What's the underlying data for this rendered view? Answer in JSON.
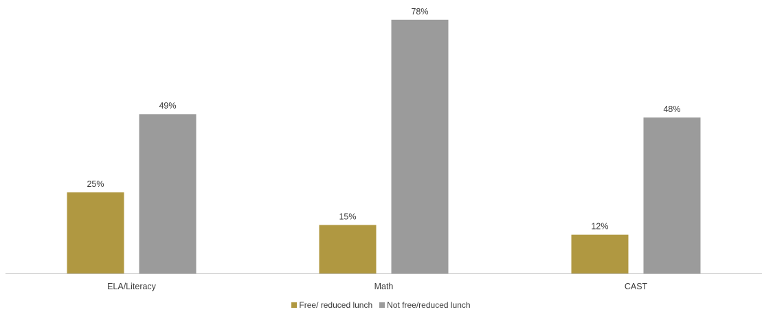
{
  "chart_data": {
    "type": "bar",
    "categories": [
      "ELA/Literacy",
      "Math",
      "CAST"
    ],
    "series": [
      {
        "name": "Free/ reduced lunch",
        "values": [
          25,
          15,
          12
        ],
        "labels": [
          "25%",
          "15%",
          "12%"
        ],
        "color": "#b09841"
      },
      {
        "name": "Not free/reduced lunch",
        "values": [
          49,
          78,
          48
        ],
        "labels": [
          "49%",
          "78%",
          "48%"
        ],
        "color": "#9b9b9b"
      }
    ],
    "ylim": [
      0,
      100
    ],
    "grid": false,
    "legend": "bottom-center",
    "axis_color": "#bfbfbf"
  }
}
